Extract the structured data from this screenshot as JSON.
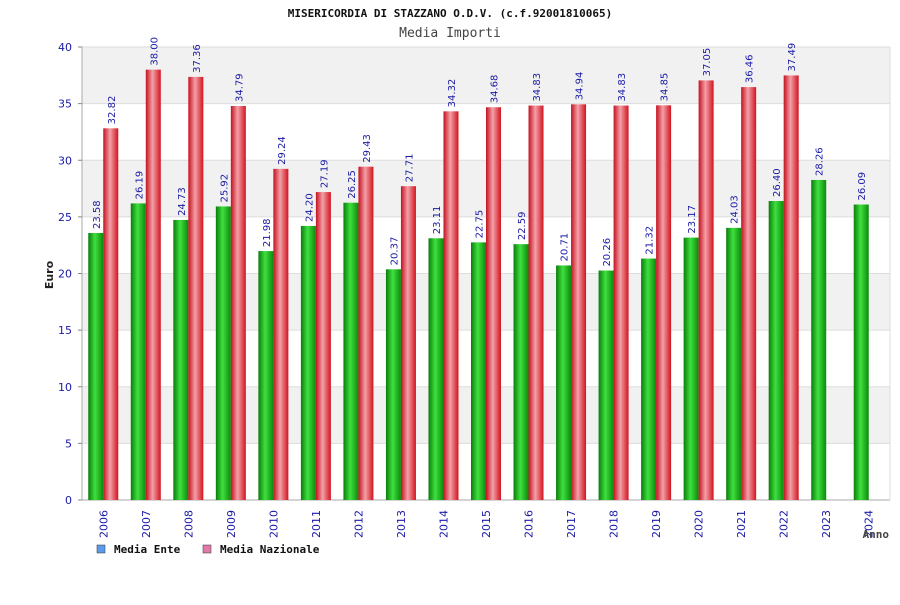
{
  "chart_data": {
    "type": "bar",
    "title": "MISERICORDIA DI STAZZANO O.D.V. (c.f.92001810065)",
    "subtitle": "Media Importi",
    "xlabel": "Anno",
    "ylabel": "Euro",
    "ylim": [
      0,
      40
    ],
    "yticks": [
      "0",
      "5",
      "10",
      "15",
      "20",
      "25",
      "30",
      "35",
      "40"
    ],
    "grid": true,
    "legend_position": "bottom-left",
    "categories": [
      "2006",
      "2007",
      "2008",
      "2009",
      "2010",
      "2011",
      "2012",
      "2013",
      "2014",
      "2015",
      "2016",
      "2017",
      "2018",
      "2019",
      "2020",
      "2021",
      "2022",
      "2023",
      "2024"
    ],
    "series": [
      {
        "name": "Media Ente",
        "color": "#1fb91f",
        "legend_color": "#5b9bea",
        "values": [
          23.58,
          26.19,
          24.73,
          25.92,
          21.98,
          24.2,
          26.25,
          20.37,
          23.11,
          22.75,
          22.59,
          20.71,
          20.26,
          21.32,
          23.17,
          24.03,
          26.4,
          28.26,
          26.09
        ],
        "labels": [
          "23.58",
          "26.19",
          "24.73",
          "25.92",
          "21.98",
          "24.20",
          "26.25",
          "20.37",
          "23.11",
          "22.75",
          "22.59",
          "20.71",
          "20.26",
          "21.32",
          "23.17",
          "24.03",
          "26.40",
          "28.26",
          "26.09"
        ]
      },
      {
        "name": "Media Nazionale",
        "color": "#e8273a",
        "legend_color": "#e07aa8",
        "values": [
          32.82,
          38.0,
          37.36,
          34.79,
          29.24,
          27.19,
          29.43,
          27.71,
          34.32,
          34.68,
          34.83,
          34.94,
          34.83,
          34.85,
          37.05,
          36.46,
          37.49,
          null,
          null
        ],
        "labels": [
          "32.82",
          "38.00",
          "37.36",
          "34.79",
          "29.24",
          "27.19",
          "29.43",
          "27.71",
          "34.32",
          "34.68",
          "34.83",
          "34.94",
          "34.83",
          "34.85",
          "37.05",
          "36.46",
          "37.49",
          null,
          null
        ]
      }
    ]
  }
}
